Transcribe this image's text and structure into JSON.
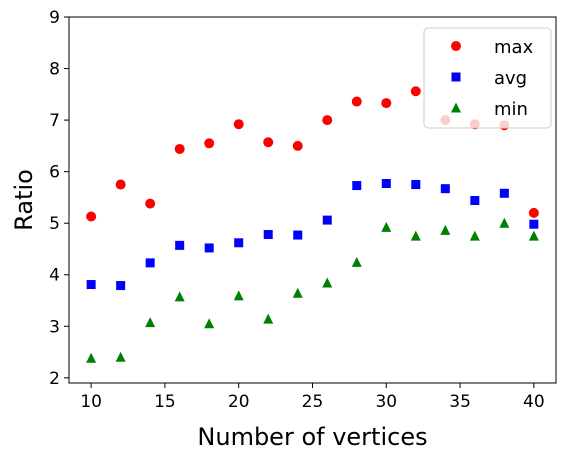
{
  "chart_data": {
    "type": "scatter",
    "xlabel": "Number of vertices",
    "ylabel": "Ratio",
    "xlim": [
      8.5,
      41.5
    ],
    "ylim": [
      1.9,
      9.0
    ],
    "xticks": [
      "10",
      "15",
      "20",
      "25",
      "30",
      "35",
      "40"
    ],
    "yticks": [
      "2",
      "3",
      "4",
      "5",
      "6",
      "7",
      "8",
      "9"
    ],
    "grid": false,
    "legend_position": "top-right",
    "x": [
      10,
      12,
      14,
      16,
      18,
      20,
      22,
      24,
      26,
      28,
      30,
      32,
      34,
      36,
      38,
      40
    ],
    "series": [
      {
        "name": "max",
        "marker": "circle",
        "color": "#ff0000",
        "values": [
          5.13,
          5.75,
          5.38,
          6.44,
          6.55,
          6.92,
          6.57,
          6.5,
          7.0,
          7.36,
          7.33,
          7.56,
          7.0,
          6.92,
          6.9,
          5.2
        ]
      },
      {
        "name": "avg",
        "marker": "square",
        "color": "#0000ff",
        "values": [
          3.81,
          3.79,
          4.23,
          4.57,
          4.52,
          4.62,
          4.78,
          4.77,
          5.06,
          5.73,
          5.77,
          5.75,
          5.67,
          5.44,
          5.58,
          4.98
        ]
      },
      {
        "name": "min",
        "marker": "triangle",
        "color": "#008000",
        "values": [
          2.38,
          2.4,
          3.07,
          3.57,
          3.05,
          3.59,
          3.14,
          3.64,
          3.84,
          4.24,
          4.92,
          4.75,
          4.86,
          4.75,
          5.0,
          4.75
        ]
      }
    ]
  }
}
